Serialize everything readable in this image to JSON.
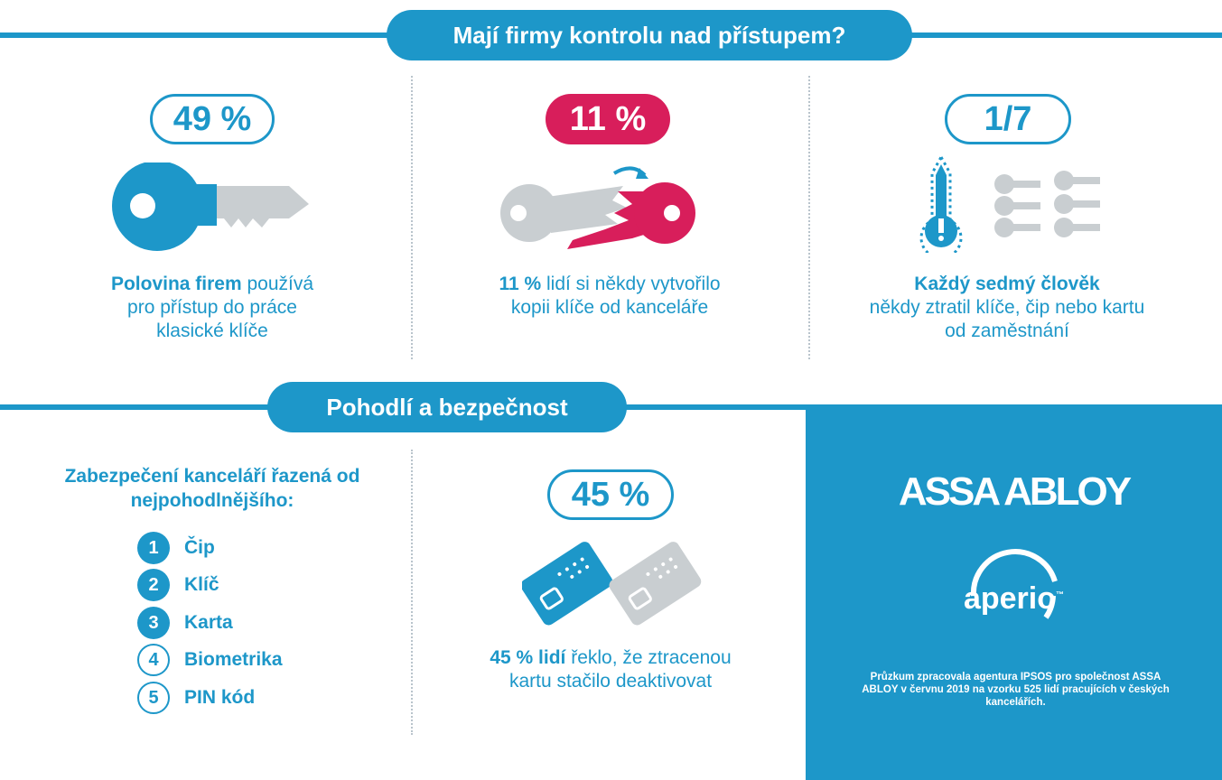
{
  "colors": {
    "accent": "#1d97c9",
    "highlight": "#d81e5b",
    "neutral": "#c9ced1",
    "background": "#ffffff"
  },
  "section1": {
    "title": "Mají firmy kontrolu nad přístupem?",
    "stats": [
      {
        "value": "49 %",
        "icon": "key-icon",
        "caption_bold": "Polovina firem",
        "caption_rest": " používá pro přístup do práce klasické klíče"
      },
      {
        "value": "11 %",
        "icon": "copied-key-icon",
        "caption_bold": "11 %",
        "caption_rest": " lidí si někdy vytvořilo kopii klíče od kanceláře"
      },
      {
        "value": "1/7",
        "icon": "lost-keys-icon",
        "caption_bold": "Každý sedmý člověk",
        "caption_rest": "někdy ztratil klíče, čip nebo kartu od zaměstnání"
      }
    ]
  },
  "section2": {
    "title": "Pohodlí a bezpečnost",
    "ranking": {
      "title": "Zabezpečení kanceláří řazená od nejpohodlnějšího:",
      "items": [
        {
          "number": "1",
          "label": "Čip"
        },
        {
          "number": "2",
          "label": "Klíč"
        },
        {
          "number": "3",
          "label": "Karta"
        },
        {
          "number": "4",
          "label": "Biometrika"
        },
        {
          "number": "5",
          "label": "PIN kód"
        }
      ]
    },
    "card_stat": {
      "value": "45 %",
      "icon": "access-cards-icon",
      "caption_bold": "45 % lidí",
      "caption_rest": " řeklo, že ztracenou kartu stačilo deaktivovat"
    }
  },
  "brand": {
    "name": "ASSA ABLOY",
    "product": "aperio",
    "trademark": "™",
    "note": "Průzkum zpracovala agentura IPSOS pro společnost ASSA ABLOY v červnu 2019 na vzorku 525 lidí pracujících v českých kancelářích."
  }
}
